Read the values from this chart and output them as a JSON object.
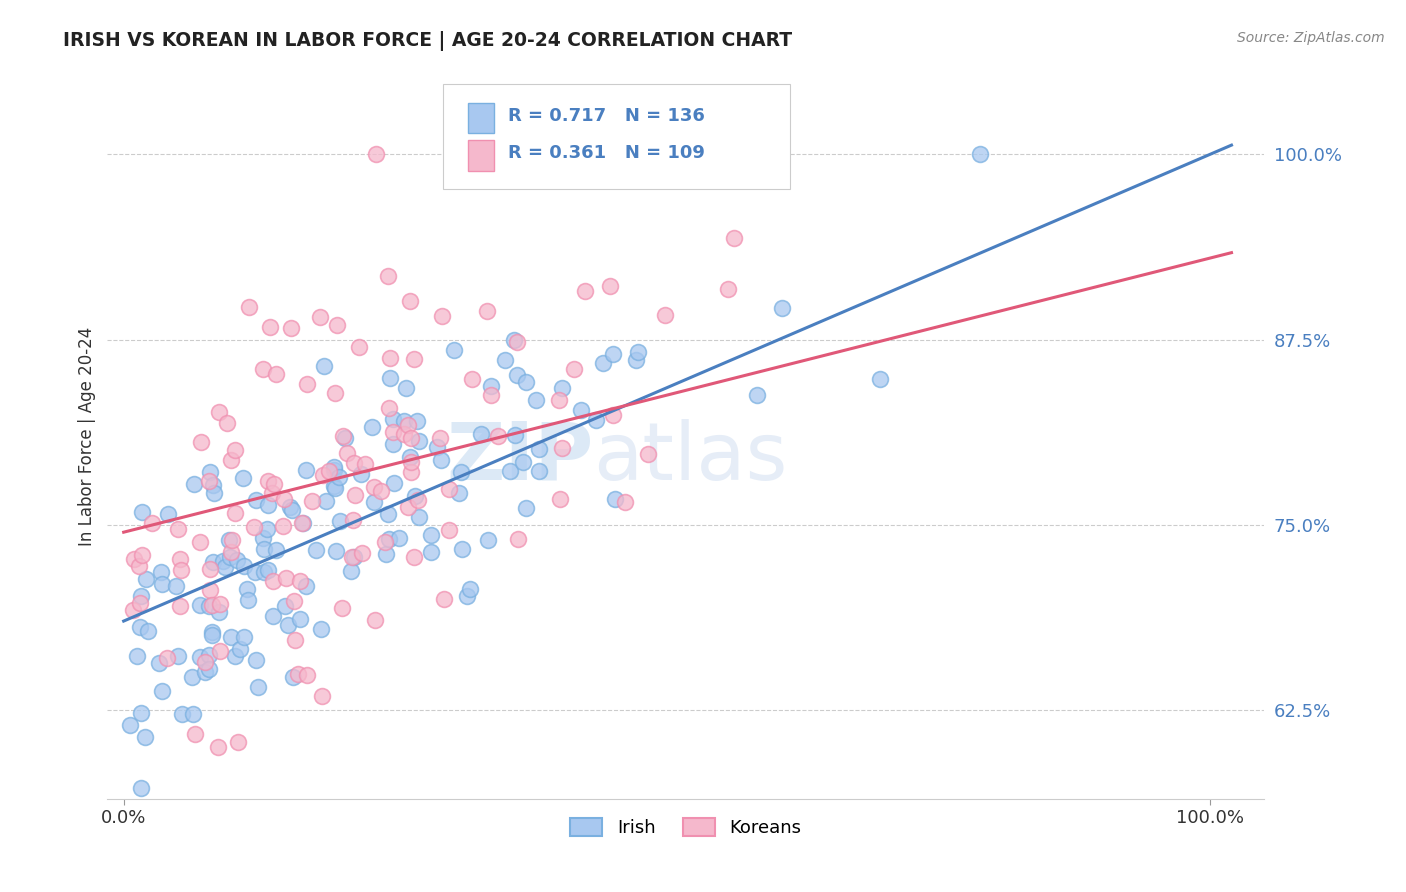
{
  "title": "IRISH VS KOREAN IN LABOR FORCE | AGE 20-24 CORRELATION CHART",
  "source": "Source: ZipAtlas.com",
  "ylabel": "In Labor Force | Age 20-24",
  "ytick_labels": [
    "62.5%",
    "75.0%",
    "87.5%",
    "100.0%"
  ],
  "ytick_values": [
    0.625,
    0.75,
    0.875,
    1.0
  ],
  "xtick_labels": [
    "0.0%",
    "100.0%"
  ],
  "irish_color": "#a8c8f0",
  "irish_edge_color": "#7ab0e0",
  "korean_color": "#f5b8cc",
  "korean_edge_color": "#f090b0",
  "irish_line_color": "#4a7fc0",
  "korean_line_color": "#e05878",
  "tick_color": "#4a7fc0",
  "irish_R": 0.717,
  "irish_N": 136,
  "korean_R": 0.361,
  "korean_N": 109,
  "watermark_zip": "ZIP",
  "watermark_atlas": "atlas",
  "background_color": "#ffffff",
  "grid_color": "#cccccc",
  "legend_label_irish": "Irish",
  "legend_label_korean": "Koreans"
}
